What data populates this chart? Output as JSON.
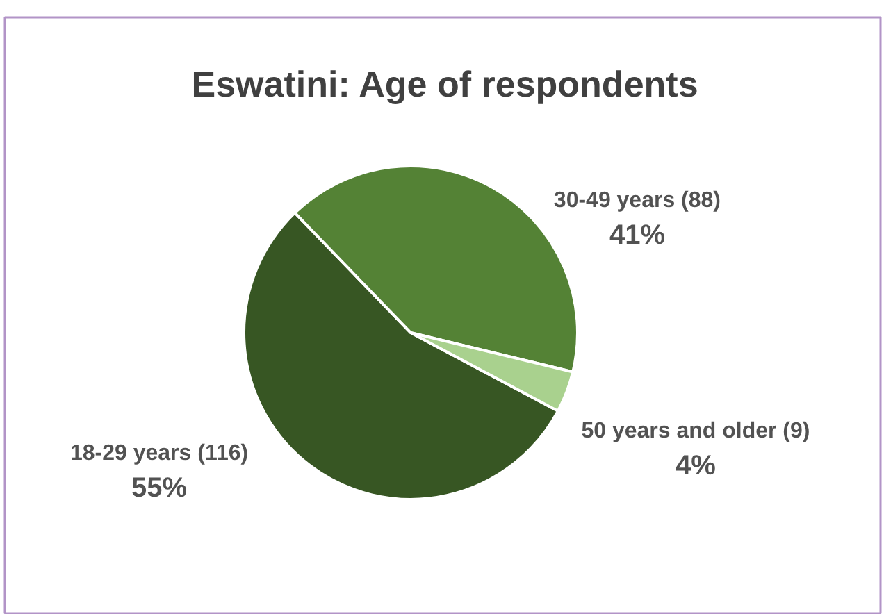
{
  "chart_data": {
    "type": "pie",
    "title": "Eswatini: Age of respondents",
    "categories": [
      "18-29 years (116)",
      "30-49 years (88)",
      "50 years and older (9)"
    ],
    "values": [
      55,
      41,
      4
    ],
    "colors": [
      "#375623",
      "#548235",
      "#a9d18e"
    ],
    "value_labels": [
      "55%",
      "41%",
      "4%"
    ],
    "legend": false
  }
}
